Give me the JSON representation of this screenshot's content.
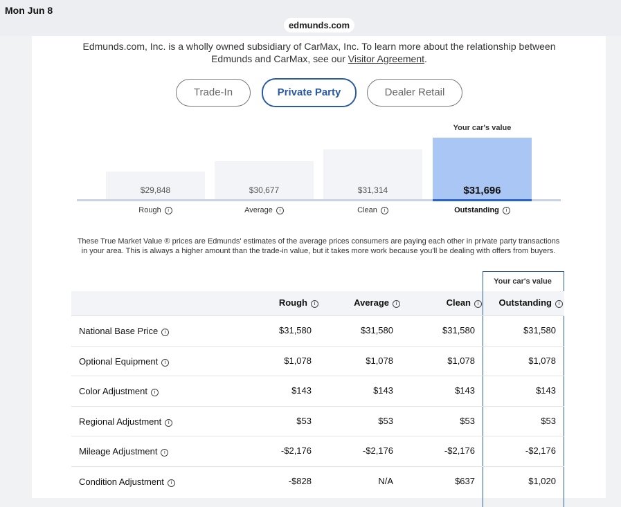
{
  "status_bar": {
    "time": "Mon Jun 8",
    "url": "edmunds.com"
  },
  "disclaimer": {
    "text": "Edmunds.com, Inc. is a wholly owned subsidiary of CarMax, Inc. To learn more about the relationship between Edmunds and CarMax, see our ",
    "link": "Visitor Agreement",
    "end": "."
  },
  "tabs": [
    "Trade-In",
    "Private Party",
    "Dealer Retail"
  ],
  "value_bar": {
    "highlight_label": "Your car's value",
    "tiers": [
      {
        "price": "$29,848",
        "label": "Rough"
      },
      {
        "price": "$30,677",
        "label": "Average"
      },
      {
        "price": "$31,314",
        "label": "Clean"
      },
      {
        "price": "$31,696",
        "label": "Outstanding"
      }
    ]
  },
  "note": "These True Market Value ® prices are Edmunds' estimates of the average prices consumers are paying each other in private party transactions in your area. This is always a higher amount than the trade-in value, but it takes more work because you'll be dealing with offers from buyers.",
  "table": {
    "highlight_label": "Your car's value",
    "header": [
      "Rough",
      "Average",
      "Clean",
      "Outstanding"
    ],
    "rows": [
      [
        "National Base Price",
        "$31,580",
        "$31,580",
        "$31,580",
        "$31,580"
      ],
      [
        "Optional Equipment",
        "$1,078",
        "$1,078",
        "$1,078",
        "$1,078"
      ],
      [
        "Color Adjustment",
        "$143",
        "$143",
        "$143",
        "$143"
      ],
      [
        "Regional Adjustment",
        "$53",
        "$53",
        "$53",
        "$53"
      ],
      [
        "Mileage Adjustment",
        "-$2,176",
        "-$2,176",
        "-$2,176",
        "-$2,176"
      ],
      [
        "Condition Adjustment",
        "-$828",
        "N/A",
        "$637",
        "$1,020"
      ]
    ]
  }
}
